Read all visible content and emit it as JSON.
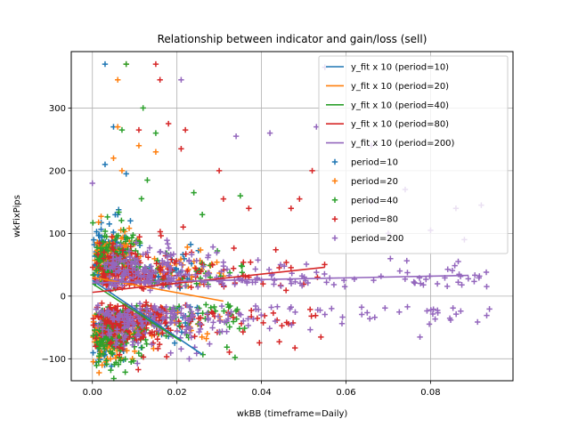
{
  "chart_data": {
    "type": "scatter",
    "title": "Relationship between indicator and gain/loss (sell)",
    "xlabel": "wkBB (timeframe=Daily)",
    "ylabel": "wkFixPips",
    "xlim": [
      -0.005,
      0.0995
    ],
    "ylim": [
      -135,
      390
    ],
    "x_ticks": [
      0.0,
      0.02,
      0.04,
      0.06,
      0.08
    ],
    "x_tick_labels": [
      "0.00",
      "0.02",
      "0.04",
      "0.06",
      "0.08"
    ],
    "y_ticks": [
      -100,
      0,
      100,
      200,
      300
    ],
    "y_tick_labels": [
      "−100",
      "0",
      "100",
      "200",
      "300"
    ],
    "grid": true,
    "legend_position": "upper-right",
    "fit_lines": [
      {
        "name": "y_fit x 10 (period=10)",
        "color": "#1f77b4",
        "x": [
          0.0,
          0.026
        ],
        "y": [
          25,
          -93
        ]
      },
      {
        "name": "y_fit x 10 (period=20)",
        "color": "#ff7f0e",
        "x": [
          0.0,
          0.031
        ],
        "y": [
          30,
          -8
        ]
      },
      {
        "name": "y_fit x 10 (period=40)",
        "color": "#2ca02c",
        "x": [
          0.0,
          0.021
        ],
        "y": [
          20,
          -72
        ]
      },
      {
        "name": "y_fit x 10 (period=80)",
        "color": "#d62728",
        "x": [
          0.0,
          0.055
        ],
        "y": [
          6,
          46
        ]
      },
      {
        "name": "y_fit x 10 (period=200)",
        "color": "#9467bd",
        "x": [
          0.0,
          0.089
        ],
        "y": [
          21,
          33
        ]
      }
    ],
    "series": [
      {
        "name": "period=10",
        "color": "#1f77b4",
        "x_max": 0.026,
        "spread": 0.006,
        "outliers": [
          [
            0.003,
            370
          ],
          [
            0.005,
            270
          ],
          [
            0.003,
            210
          ],
          [
            0.006,
            130
          ],
          [
            0.008,
            195
          ],
          [
            0.009,
            120
          ],
          [
            0.004,
            115
          ]
        ]
      },
      {
        "name": "period=20",
        "color": "#ff7f0e",
        "x_max": 0.031,
        "spread": 0.007,
        "outliers": [
          [
            0.006,
            345
          ],
          [
            0.008,
            370
          ],
          [
            0.006,
            270
          ],
          [
            0.005,
            220
          ],
          [
            0.011,
            240
          ],
          [
            0.007,
            200
          ],
          [
            0.015,
            230
          ]
        ]
      },
      {
        "name": "period=40",
        "color": "#2ca02c",
        "x_max": 0.036,
        "spread": 0.009,
        "outliers": [
          [
            0.008,
            370
          ],
          [
            0.012,
            300
          ],
          [
            0.015,
            260
          ],
          [
            0.007,
            265
          ],
          [
            0.013,
            185
          ],
          [
            0.024,
            165
          ],
          [
            0.035,
            160
          ],
          [
            0.026,
            130
          ]
        ]
      },
      {
        "name": "period=80",
        "color": "#d62728",
        "x_max": 0.055,
        "spread": 0.014,
        "outliers": [
          [
            0.015,
            370
          ],
          [
            0.016,
            345
          ],
          [
            0.011,
            265
          ],
          [
            0.018,
            275
          ],
          [
            0.022,
            265
          ],
          [
            0.021,
            235
          ],
          [
            0.03,
            200
          ],
          [
            0.031,
            155
          ],
          [
            0.037,
            140
          ],
          [
            0.052,
            200
          ],
          [
            0.049,
            155
          ],
          [
            0.047,
            140
          ]
        ]
      },
      {
        "name": "period=200",
        "color": "#9467bd",
        "x_max": 0.094,
        "spread": 0.022,
        "outliers": [
          [
            0.021,
            345
          ],
          [
            0.055,
            365
          ],
          [
            0.053,
            270
          ],
          [
            0.034,
            255
          ],
          [
            0.042,
            260
          ],
          [
            0.066,
            240
          ],
          [
            0.0,
            180
          ],
          [
            0.086,
            140
          ],
          [
            0.092,
            145
          ],
          [
            0.074,
            170
          ],
          [
            0.066,
            150
          ],
          [
            0.088,
            90
          ],
          [
            0.08,
            105
          ],
          [
            0.07,
            100
          ]
        ]
      }
    ]
  }
}
